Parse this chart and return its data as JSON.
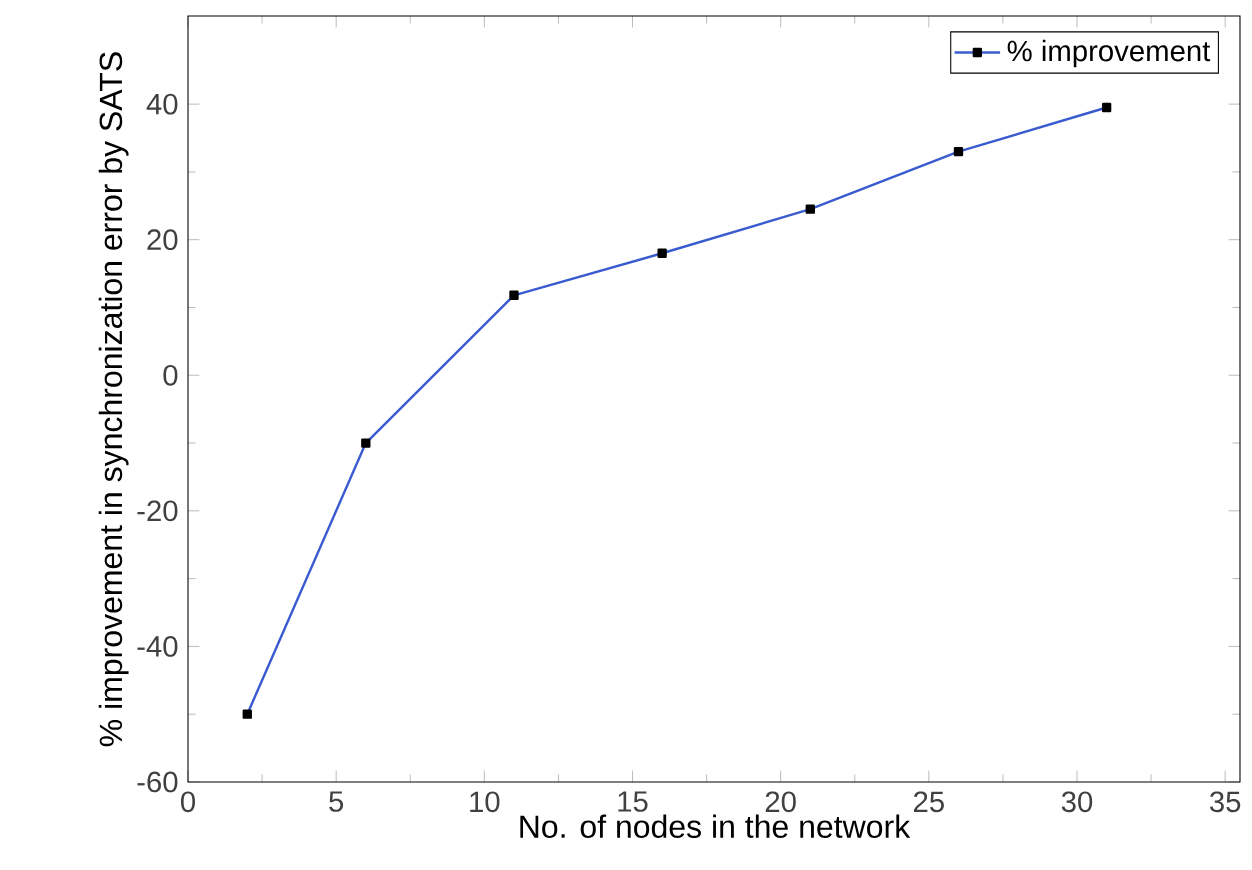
{
  "chart_data": {
    "type": "line",
    "xlabel": "No. of nodes in the network",
    "ylabel": "% improvement in synchronization error by SATS",
    "x": [
      2,
      6,
      11,
      16,
      21,
      26,
      31
    ],
    "series": [
      {
        "name": "% improvement",
        "color": "#3a5bd0",
        "values": [
          -50,
          -10,
          11.8,
          18,
          24.5,
          33,
          39.5
        ]
      }
    ],
    "xlim": [
      0,
      35.5
    ],
    "ylim": [
      -60,
      53
    ],
    "xticks": [
      0,
      5,
      10,
      15,
      20,
      25,
      30,
      35
    ],
    "yticks": [
      -60,
      -40,
      -20,
      0,
      20,
      40
    ],
    "legend": "top right",
    "marker": "square",
    "line_style": "solid"
  }
}
